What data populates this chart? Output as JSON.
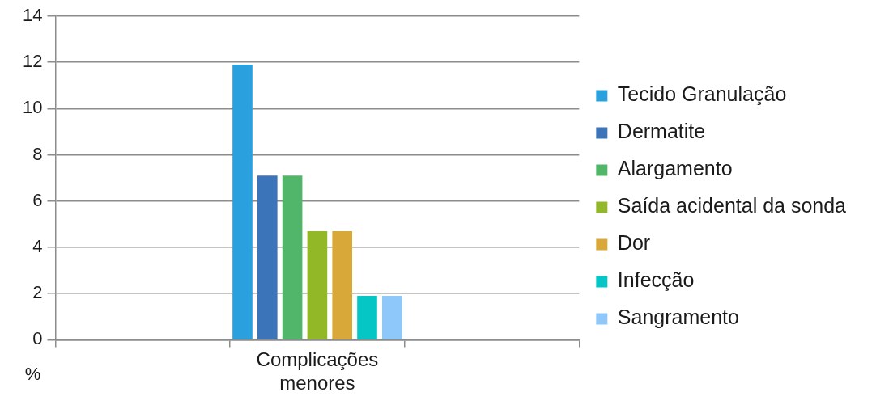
{
  "chart_data": {
    "type": "bar",
    "ylabel": "%",
    "categories": [
      null,
      "Complicações menores",
      null
    ],
    "series": [
      {
        "name": "Tecido Granulação",
        "color": "#2aa0de",
        "values": [
          null,
          11.9,
          null
        ]
      },
      {
        "name": "Dermatite",
        "color": "#3c74b9",
        "values": [
          null,
          7.1,
          null
        ]
      },
      {
        "name": "Alargamento",
        "color": "#52b66a",
        "values": [
          null,
          7.1,
          null
        ]
      },
      {
        "name": "Saída acidental da sonda",
        "color": "#92b827",
        "values": [
          null,
          4.7,
          null
        ]
      },
      {
        "name": "Dor",
        "color": "#d8a838",
        "values": [
          null,
          4.7,
          null
        ]
      },
      {
        "name": "Infecção",
        "color": "#05c6c4",
        "values": [
          null,
          1.9,
          null
        ]
      },
      {
        "name": "Sangramento",
        "color": "#8ec8fa",
        "values": [
          null,
          1.9,
          null
        ]
      }
    ],
    "ylim": [
      0,
      14
    ],
    "yticks": [
      0,
      2,
      4,
      6,
      8,
      10,
      12,
      14
    ],
    "grid": "y",
    "legend": "right"
  }
}
